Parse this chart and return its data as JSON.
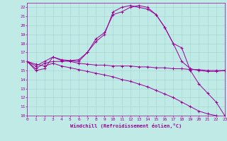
{
  "xlabel": "Windchill (Refroidissement éolien,°C)",
  "background_color": "#c0eae6",
  "grid_color": "#a8d8d4",
  "line_color": "#990099",
  "xlim": [
    0,
    23
  ],
  "ylim": [
    10,
    22.5
  ],
  "yticks": [
    10,
    11,
    12,
    13,
    14,
    15,
    16,
    17,
    18,
    19,
    20,
    21,
    22
  ],
  "xticks": [
    0,
    1,
    2,
    3,
    4,
    5,
    6,
    7,
    8,
    9,
    10,
    11,
    12,
    13,
    14,
    15,
    16,
    17,
    18,
    19,
    20,
    21,
    22,
    23
  ],
  "line1_x": [
    0,
    1,
    2,
    3,
    4,
    5,
    6,
    7,
    8,
    9,
    10,
    11,
    12,
    13,
    14,
    15,
    16,
    17,
    18,
    19,
    20,
    21,
    22,
    23
  ],
  "line1_y": [
    16.0,
    15.0,
    15.2,
    16.5,
    16.1,
    16.0,
    15.8,
    15.7,
    15.6,
    15.6,
    15.5,
    15.5,
    15.5,
    15.4,
    15.4,
    15.3,
    15.3,
    15.2,
    15.2,
    15.1,
    15.1,
    15.0,
    15.0,
    15.0
  ],
  "line2_x": [
    0,
    1,
    2,
    3,
    4,
    5,
    6,
    7,
    8,
    9,
    10,
    11,
    12,
    13,
    14,
    15,
    16,
    17,
    18,
    19,
    20,
    21,
    22,
    23
  ],
  "line2_y": [
    16.0,
    15.2,
    15.8,
    16.0,
    16.0,
    16.1,
    16.2,
    17.0,
    18.5,
    19.2,
    21.2,
    21.5,
    22.0,
    22.2,
    22.0,
    21.2,
    19.8,
    18.0,
    17.5,
    15.0,
    13.5,
    12.5,
    11.5,
    10.0
  ],
  "line3_x": [
    0,
    1,
    2,
    3,
    4,
    5,
    6,
    7,
    8,
    9,
    10,
    11,
    12,
    13,
    14,
    15,
    16,
    17,
    18,
    19,
    20,
    21,
    22,
    23
  ],
  "line3_y": [
    16.0,
    15.5,
    16.0,
    16.5,
    16.2,
    16.1,
    16.0,
    17.0,
    18.2,
    19.0,
    21.5,
    22.0,
    22.2,
    22.0,
    21.8,
    21.2,
    19.8,
    18.0,
    16.0,
    15.2,
    15.0,
    14.9,
    14.9,
    15.0
  ],
  "line4_x": [
    0,
    1,
    2,
    3,
    4,
    5,
    6,
    7,
    8,
    9,
    10,
    11,
    12,
    13,
    14,
    15,
    16,
    17,
    18,
    19,
    20,
    21,
    22,
    23
  ],
  "line4_y": [
    16.0,
    15.7,
    15.5,
    15.8,
    15.5,
    15.3,
    15.1,
    14.9,
    14.7,
    14.5,
    14.3,
    14.0,
    13.8,
    13.5,
    13.2,
    12.8,
    12.4,
    12.0,
    11.5,
    11.0,
    10.5,
    10.2,
    10.0,
    9.0
  ]
}
